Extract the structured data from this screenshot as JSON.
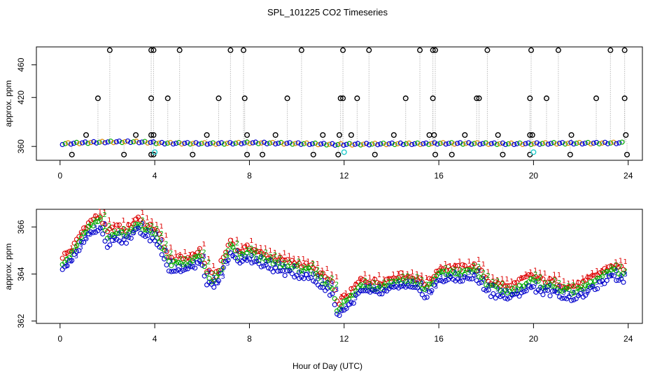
{
  "figure_title": "SPL_101225  CO2 Timeseries",
  "chart_data": [
    {
      "type": "scatter",
      "panel": "top",
      "title": "SPL_101225  CO2 Timeseries",
      "xlabel": "",
      "ylabel": "approx. ppm",
      "xlim": [
        -1,
        24.6
      ],
      "ylim": [
        343,
        482
      ],
      "xticks": [
        0,
        4,
        8,
        12,
        16,
        20,
        24
      ],
      "yticks": [
        360,
        420,
        460
      ],
      "baseline": [
        [
          0.1,
          363.2
        ],
        [
          1.0,
          364.5
        ],
        [
          2.0,
          365.5
        ],
        [
          3.0,
          365.8
        ],
        [
          3.8,
          365.0
        ],
        [
          4.2,
          364.0
        ],
        [
          5.5,
          363.8
        ],
        [
          6.5,
          363.5
        ],
        [
          7.5,
          364.0
        ],
        [
          8.0,
          364.5
        ],
        [
          9.5,
          363.8
        ],
        [
          11.0,
          363.0
        ],
        [
          11.7,
          362.3
        ],
        [
          12.3,
          362.6
        ],
        [
          14.0,
          363.2
        ],
        [
          15.5,
          363.3
        ],
        [
          16.0,
          363.8
        ],
        [
          17.5,
          363.6
        ],
        [
          19.0,
          363.2
        ],
        [
          19.9,
          363.4
        ],
        [
          21.0,
          363.8
        ],
        [
          22.5,
          364.0
        ],
        [
          23.3,
          364.2
        ],
        [
          23.8,
          364.4
        ]
      ],
      "series": [
        {
          "name": "outlier_high_478",
          "color": "#000000",
          "y": 478,
          "x": [
            2.1,
            3.85,
            3.95,
            5.05,
            7.2,
            7.75,
            10.2,
            11.95,
            13.05,
            15.2,
            15.75,
            15.85,
            18.05,
            19.9,
            21.05,
            23.25,
            23.85
          ]
        },
        {
          "name": "outlier_high_419",
          "color": "#000000",
          "y": 419,
          "x": [
            1.6,
            3.85,
            4.55,
            6.7,
            7.8,
            9.6,
            11.85,
            11.95,
            12.55,
            14.6,
            15.75,
            17.6,
            17.7,
            19.85,
            20.55,
            22.65,
            23.85
          ]
        },
        {
          "name": "outlier_mid_374",
          "color": "#000000",
          "y": 374,
          "x": [
            1.1,
            3.2,
            3.85,
            3.95,
            6.2,
            7.9,
            9.1,
            11.1,
            11.8,
            12.3,
            14.1,
            15.6,
            15.8,
            17.1,
            18.5,
            19.85,
            19.95,
            21.6,
            23.9
          ]
        },
        {
          "name": "outlier_low_350",
          "color": "#000000",
          "y": 350,
          "x": [
            0.5,
            2.7,
            3.85,
            3.95,
            5.6,
            7.9,
            8.55,
            10.7,
            11.75,
            13.3,
            15.85,
            16.55,
            18.7,
            19.85,
            21.55,
            23.95
          ]
        },
        {
          "name": "cyan_low",
          "color": "#22cccc",
          "y": 353,
          "x": [
            4.0,
            12.0,
            20.0
          ]
        }
      ]
    },
    {
      "type": "scatter",
      "panel": "bottom",
      "title": "",
      "xlabel": "Hour of Day (UTC)",
      "ylabel": "approx. ppm",
      "xlim": [
        -1,
        24.6
      ],
      "ylim": [
        361.9,
        366.75
      ],
      "xticks": [
        0,
        4,
        8,
        12,
        16,
        20,
        24
      ],
      "yticks": [
        362,
        364,
        366
      ],
      "series": [
        {
          "name": "1",
          "color": "#dd0000",
          "offset": 0.45,
          "anchors": [
            [
              0.1,
              364.3
            ],
            [
              0.5,
              364.6
            ],
            [
              1.0,
              365.5
            ],
            [
              1.4,
              365.9
            ],
            [
              1.7,
              366.0
            ],
            [
              2.0,
              365.3
            ],
            [
              2.4,
              365.6
            ],
            [
              2.7,
              365.4
            ],
            [
              3.0,
              365.6
            ],
            [
              3.3,
              366.0
            ],
            [
              3.6,
              365.6
            ],
            [
              4.0,
              365.5
            ],
            [
              4.4,
              364.8
            ],
            [
              4.6,
              364.2
            ],
            [
              5.2,
              364.2
            ],
            [
              5.6,
              364.3
            ],
            [
              5.9,
              364.6
            ],
            [
              6.2,
              363.7
            ],
            [
              6.5,
              363.4
            ],
            [
              6.8,
              364.0
            ],
            [
              7.2,
              365.0
            ],
            [
              7.5,
              364.5
            ],
            [
              8.0,
              364.7
            ],
            [
              8.5,
              364.4
            ],
            [
              9.5,
              364.1
            ],
            [
              10.5,
              363.9
            ],
            [
              11.5,
              363.2
            ],
            [
              11.7,
              362.3
            ],
            [
              12.3,
              362.8
            ],
            [
              12.7,
              363.3
            ],
            [
              13.5,
              363.2
            ],
            [
              14.3,
              363.5
            ],
            [
              15.0,
              363.4
            ],
            [
              15.5,
              363.1
            ],
            [
              16.0,
              363.8
            ],
            [
              16.8,
              363.8
            ],
            [
              17.5,
              363.9
            ],
            [
              18.2,
              363.2
            ],
            [
              19.0,
              363.0
            ],
            [
              19.9,
              363.5
            ],
            [
              20.3,
              363.3
            ],
            [
              21.0,
              363.2
            ],
            [
              21.5,
              363.0
            ],
            [
              22.0,
              363.1
            ],
            [
              22.8,
              363.6
            ],
            [
              23.3,
              363.9
            ],
            [
              23.8,
              363.8
            ]
          ]
        },
        {
          "name": "2",
          "color": "#00aa00",
          "offset": 0.22,
          "anchors": [
            [
              0.1,
              364.3
            ],
            [
              0.5,
              364.6
            ],
            [
              1.0,
              365.5
            ],
            [
              1.4,
              365.9
            ],
            [
              1.7,
              366.0
            ],
            [
              2.0,
              365.3
            ],
            [
              2.4,
              365.6
            ],
            [
              2.7,
              365.4
            ],
            [
              3.0,
              365.6
            ],
            [
              3.3,
              366.0
            ],
            [
              3.6,
              365.6
            ],
            [
              4.0,
              365.5
            ],
            [
              4.4,
              364.8
            ],
            [
              4.6,
              364.2
            ],
            [
              5.2,
              364.2
            ],
            [
              5.6,
              364.3
            ],
            [
              5.9,
              364.6
            ],
            [
              6.2,
              363.7
            ],
            [
              6.5,
              363.4
            ],
            [
              6.8,
              364.0
            ],
            [
              7.2,
              365.0
            ],
            [
              7.5,
              364.5
            ],
            [
              8.0,
              364.7
            ],
            [
              8.5,
              364.4
            ],
            [
              9.5,
              364.1
            ],
            [
              10.5,
              363.9
            ],
            [
              11.5,
              363.2
            ],
            [
              11.7,
              362.3
            ],
            [
              12.3,
              362.8
            ],
            [
              12.7,
              363.3
            ],
            [
              13.5,
              363.2
            ],
            [
              14.3,
              363.5
            ],
            [
              15.0,
              363.4
            ],
            [
              15.5,
              363.1
            ],
            [
              16.0,
              363.8
            ],
            [
              16.8,
              363.8
            ],
            [
              17.5,
              363.9
            ],
            [
              18.2,
              363.2
            ],
            [
              19.0,
              363.0
            ],
            [
              19.9,
              363.5
            ],
            [
              20.3,
              363.3
            ],
            [
              21.0,
              363.2
            ],
            [
              21.5,
              363.0
            ],
            [
              22.0,
              363.1
            ],
            [
              22.8,
              363.6
            ],
            [
              23.3,
              363.9
            ],
            [
              23.8,
              363.8
            ]
          ]
        },
        {
          "name": "3",
          "color": "#0000cc",
          "offset": -0.05,
          "anchors": [
            [
              0.1,
              364.3
            ],
            [
              0.5,
              364.6
            ],
            [
              1.0,
              365.5
            ],
            [
              1.4,
              365.9
            ],
            [
              1.7,
              366.0
            ],
            [
              2.0,
              365.3
            ],
            [
              2.4,
              365.6
            ],
            [
              2.7,
              365.4
            ],
            [
              3.0,
              365.6
            ],
            [
              3.3,
              366.0
            ],
            [
              3.6,
              365.6
            ],
            [
              4.0,
              365.5
            ],
            [
              4.4,
              364.8
            ],
            [
              4.6,
              364.2
            ],
            [
              5.2,
              364.2
            ],
            [
              5.6,
              364.3
            ],
            [
              5.9,
              364.6
            ],
            [
              6.2,
              363.7
            ],
            [
              6.5,
              363.4
            ],
            [
              6.8,
              364.0
            ],
            [
              7.2,
              365.0
            ],
            [
              7.5,
              364.5
            ],
            [
              8.0,
              364.7
            ],
            [
              8.5,
              364.4
            ],
            [
              9.5,
              364.1
            ],
            [
              10.5,
              363.9
            ],
            [
              11.5,
              363.2
            ],
            [
              11.7,
              362.3
            ],
            [
              12.3,
              362.8
            ],
            [
              12.7,
              363.3
            ],
            [
              13.5,
              363.2
            ],
            [
              14.3,
              363.5
            ],
            [
              15.0,
              363.4
            ],
            [
              15.5,
              363.1
            ],
            [
              16.0,
              363.8
            ],
            [
              16.8,
              363.8
            ],
            [
              17.5,
              363.9
            ],
            [
              18.2,
              363.2
            ],
            [
              19.0,
              363.0
            ],
            [
              19.9,
              363.5
            ],
            [
              20.3,
              363.3
            ],
            [
              21.0,
              363.2
            ],
            [
              21.5,
              363.0
            ],
            [
              22.0,
              363.1
            ],
            [
              22.8,
              363.6
            ],
            [
              23.3,
              363.9
            ],
            [
              23.8,
              363.8
            ]
          ]
        }
      ]
    }
  ]
}
